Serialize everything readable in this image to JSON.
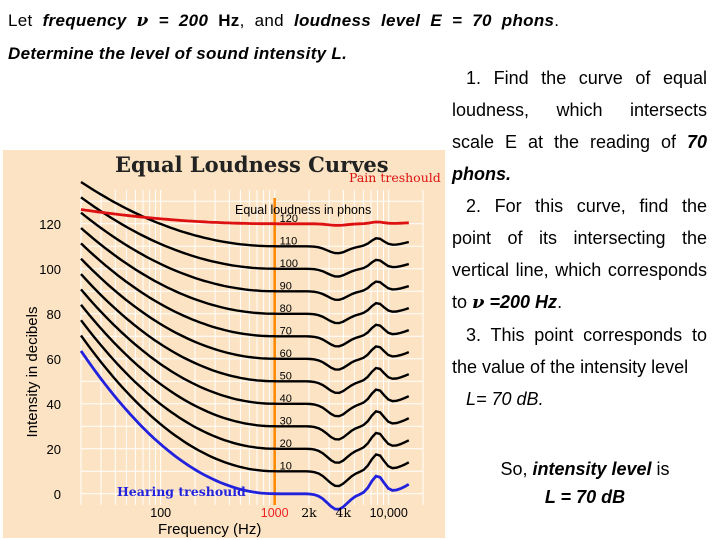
{
  "problem": {
    "line1": {
      "a": "Let ",
      "b": "frequency",
      "c": " ",
      "nu": "ν",
      "d": " = 200 ",
      "e": "Hz",
      "f": ", and ",
      "g": "loudness level E = 70 phons",
      "h": "."
    },
    "line2": "Determine the level of sound intensity L."
  },
  "steps": {
    "s1_a": "1. Find the curve of equal loudness, which intersects scale E at the reading of ",
    "s1_b": "70 phons.",
    "s2_a": "2. For this curve, find the point of its intersecting the vertical line, which corresponds to ",
    "s2_nu": "ν",
    "s2_b": " =200 Hz",
    "s2_c": ".",
    "s3_a": "3. This point corresponds to the value of the intensity level",
    "s3_b": "L= 70 dB."
  },
  "result": {
    "a": "So, ",
    "b": "intensity level",
    "c": " is",
    "d": "L = 70 dB"
  },
  "chart_data": {
    "type": "line",
    "title": "Equal Loudness Curves",
    "xlabel": "Frequency (Hz)",
    "ylabel": "Intensity in decibels",
    "xscale": "log",
    "xlim": [
      20,
      20000
    ],
    "ylim": [
      -5,
      135
    ],
    "yticks": [
      "0",
      "20",
      "40",
      "60",
      "80",
      "100",
      "120"
    ],
    "xtick_labels": [
      {
        "x": 100,
        "label": "100"
      },
      {
        "x": 1000,
        "label": "1000"
      },
      {
        "x": 2000,
        "label": "2k"
      },
      {
        "x": 4000,
        "label": "4k"
      },
      {
        "x": 10000,
        "label": "10,000"
      }
    ],
    "grid": true,
    "phon_title": "Equal loudness in phons",
    "phon_levels": [
      10,
      20,
      30,
      40,
      50,
      60,
      70,
      80,
      90,
      100,
      110,
      120
    ],
    "phon_labels": [
      "10",
      "20",
      "30",
      "40",
      "50",
      "60",
      "70",
      "80",
      "90",
      "100",
      "110",
      "120"
    ],
    "pain_label": "Pain treshould",
    "hearing_label": "Hearing treshould",
    "colors": {
      "background": "#fbe3c3",
      "curves": "#000000",
      "pain": "#dd1111",
      "hearing": "#2222dd",
      "vertical_line": "#ff8800",
      "title": "#222222"
    }
  }
}
